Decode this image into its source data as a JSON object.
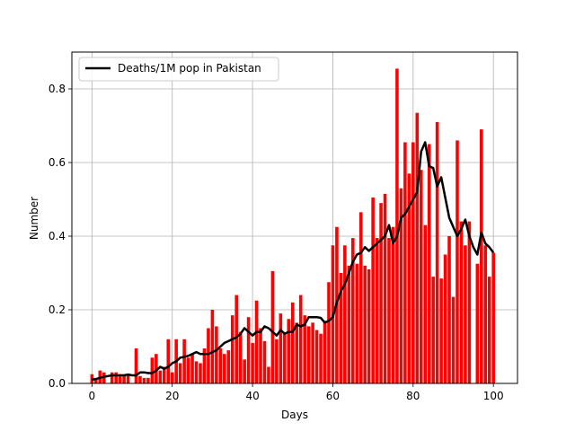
{
  "chart_data": {
    "type": "bar",
    "xlabel": "Days",
    "ylabel": "Number",
    "xlim": [
      -5,
      106
    ],
    "ylim": [
      0,
      0.9
    ],
    "x_ticks": [
      0,
      20,
      40,
      60,
      80,
      100
    ],
    "y_ticks": [
      0.0,
      0.2,
      0.4,
      0.6,
      0.8
    ],
    "x_tick_labels": [
      "0",
      "20",
      "40",
      "60",
      "80",
      "100"
    ],
    "y_tick_labels": [
      "0.0",
      "0.2",
      "0.4",
      "0.6",
      "0.8"
    ],
    "grid": true,
    "legend_position": "top-left",
    "colors": {
      "bars": "#ff0000",
      "line": "#000000",
      "grid": "#b0b0b0"
    },
    "series": [
      {
        "type": "bar",
        "values": [
          0.025,
          0.01,
          0.035,
          0.03,
          0.0,
          0.03,
          0.03,
          0.025,
          0.025,
          0.025,
          0.0,
          0.095,
          0.02,
          0.015,
          0.015,
          0.07,
          0.08,
          0.035,
          0.045,
          0.12,
          0.03,
          0.12,
          0.055,
          0.12,
          0.07,
          0.08,
          0.06,
          0.055,
          0.095,
          0.15,
          0.2,
          0.155,
          0.095,
          0.08,
          0.09,
          0.185,
          0.24,
          0.14,
          0.065,
          0.18,
          0.11,
          0.225,
          0.15,
          0.115,
          0.045,
          0.305,
          0.12,
          0.19,
          0.135,
          0.175,
          0.22,
          0.165,
          0.24,
          0.185,
          0.155,
          0.165,
          0.145,
          0.135,
          0.17,
          0.275,
          0.375,
          0.425,
          0.3,
          0.375,
          0.32,
          0.395,
          0.325,
          0.465,
          0.32,
          0.31,
          0.505,
          0.395,
          0.49,
          0.515,
          0.395,
          0.425,
          0.855,
          0.53,
          0.655,
          0.57,
          0.655,
          0.735,
          0.58,
          0.43,
          0.65,
          0.29,
          0.71,
          0.285,
          0.35,
          0.4,
          0.235,
          0.66,
          0.44,
          0.375,
          0.44,
          0.0,
          0.325,
          0.69,
          0.375,
          0.29,
          0.355
        ]
      },
      {
        "type": "line",
        "name": "Deaths/1M pop in Pakistan",
        "values": [
          0.01,
          0.012,
          0.015,
          0.018,
          0.02,
          0.022,
          0.022,
          0.022,
          0.022,
          0.024,
          0.022,
          0.022,
          0.03,
          0.03,
          0.028,
          0.028,
          0.035,
          0.045,
          0.04,
          0.045,
          0.055,
          0.06,
          0.07,
          0.072,
          0.075,
          0.08,
          0.085,
          0.08,
          0.08,
          0.08,
          0.085,
          0.09,
          0.1,
          0.11,
          0.115,
          0.12,
          0.125,
          0.135,
          0.15,
          0.14,
          0.13,
          0.14,
          0.14,
          0.155,
          0.15,
          0.14,
          0.13,
          0.145,
          0.135,
          0.14,
          0.14,
          0.16,
          0.155,
          0.16,
          0.18,
          0.18,
          0.18,
          0.178,
          0.165,
          0.17,
          0.18,
          0.22,
          0.25,
          0.27,
          0.3,
          0.33,
          0.35,
          0.355,
          0.37,
          0.36,
          0.37,
          0.38,
          0.39,
          0.4,
          0.43,
          0.38,
          0.4,
          0.45,
          0.46,
          0.48,
          0.5,
          0.52,
          0.63,
          0.655,
          0.59,
          0.585,
          0.535,
          0.56,
          0.505,
          0.45,
          0.425,
          0.4,
          0.42,
          0.445,
          0.4,
          0.37,
          0.35,
          0.41,
          0.38,
          0.37,
          0.355
        ]
      }
    ]
  }
}
